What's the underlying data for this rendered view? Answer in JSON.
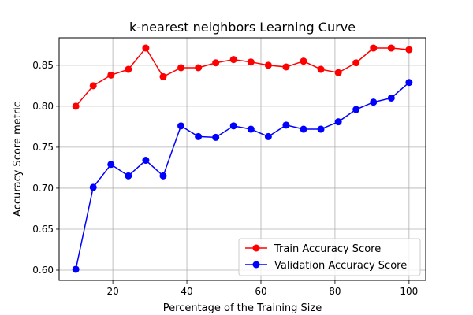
{
  "chart_data": {
    "type": "line",
    "title": "k-nearest neighbors Learning Curve",
    "xlabel": "Percentage of the Training Size",
    "ylabel": "Accuracy Score metric",
    "xlim": [
      5.5,
      104.5
    ],
    "ylim": [
      0.5875,
      0.8835
    ],
    "xticks": [
      20,
      40,
      60,
      80,
      100
    ],
    "yticks": [
      0.6,
      0.65,
      0.7,
      0.75,
      0.8,
      0.85
    ],
    "ytick_labels": [
      "0.60",
      "0.65",
      "0.70",
      "0.75",
      "0.80",
      "0.85"
    ],
    "grid": true,
    "legend_position": "lower-right",
    "x": [
      10,
      14.7,
      19.5,
      24.2,
      28.9,
      33.6,
      38.4,
      43.1,
      47.8,
      52.6,
      57.3,
      62.0,
      66.8,
      71.5,
      76.2,
      80.9,
      85.7,
      90.4,
      95.2,
      100
    ],
    "series": [
      {
        "name": "Train Accuracy Score",
        "color": "#ff0000",
        "values": [
          0.8,
          0.825,
          0.838,
          0.845,
          0.871,
          0.836,
          0.847,
          0.847,
          0.853,
          0.857,
          0.854,
          0.85,
          0.848,
          0.855,
          0.845,
          0.841,
          0.853,
          0.871,
          0.871,
          0.869
        ]
      },
      {
        "name": "Validation Accuracy Score",
        "color": "#0000ff",
        "values": [
          0.601,
          0.701,
          0.729,
          0.715,
          0.734,
          0.715,
          0.776,
          0.763,
          0.762,
          0.776,
          0.772,
          0.763,
          0.777,
          0.772,
          0.772,
          0.781,
          0.796,
          0.805,
          0.81,
          0.829
        ]
      }
    ]
  }
}
